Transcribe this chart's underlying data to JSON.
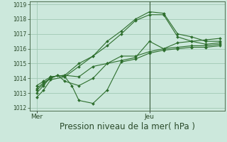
{
  "background_color": "#cce8dc",
  "grid_color": "#a0c8b4",
  "line_color": "#2d6e2d",
  "marker_color": "#2d6e2d",
  "xlabel": "Pression niveau de la mer( hPa )",
  "xlabel_fontsize": 8.5,
  "ylim": [
    1011.8,
    1019.2
  ],
  "yticks": [
    1012,
    1013,
    1014,
    1015,
    1016,
    1017,
    1018,
    1019
  ],
  "xtick_labels": [
    "Mer",
    "Jeu"
  ],
  "xtick_positions": [
    0,
    48
  ],
  "vline_x": 48,
  "xlim": [
    -3,
    80
  ],
  "series": [
    {
      "x": [
        0,
        3,
        6,
        12,
        18,
        24,
        30,
        36,
        42,
        48,
        54,
        60,
        66,
        72,
        78
      ],
      "y": [
        1012.7,
        1013.2,
        1013.9,
        1014.1,
        1014.8,
        1015.5,
        1016.5,
        1017.2,
        1018.0,
        1018.5,
        1018.4,
        1017.0,
        1016.8,
        1016.5,
        1016.5
      ]
    },
    {
      "x": [
        0,
        3,
        6,
        12,
        18,
        24,
        30,
        36,
        42,
        48,
        54,
        60,
        66,
        72,
        78
      ],
      "y": [
        1013.0,
        1013.5,
        1014.1,
        1014.2,
        1015.0,
        1015.5,
        1016.2,
        1017.0,
        1017.9,
        1018.3,
        1018.3,
        1016.8,
        1016.5,
        1016.3,
        1016.4
      ]
    },
    {
      "x": [
        0,
        3,
        6,
        9,
        12,
        18,
        24,
        30,
        36,
        42,
        48,
        54,
        60,
        66,
        72,
        78
      ],
      "y": [
        1013.2,
        1013.6,
        1014.0,
        1014.2,
        1013.8,
        1013.5,
        1014.0,
        1015.0,
        1015.5,
        1015.5,
        1015.8,
        1016.0,
        1016.1,
        1016.2,
        1016.2,
        1016.3
      ]
    },
    {
      "x": [
        0,
        3,
        6,
        9,
        12,
        15,
        18,
        24,
        30,
        36,
        42,
        48,
        54,
        60,
        66,
        72,
        78
      ],
      "y": [
        1013.3,
        1013.7,
        1014.0,
        1014.2,
        1014.1,
        1013.5,
        1012.5,
        1012.3,
        1013.2,
        1015.1,
        1015.3,
        1015.7,
        1015.9,
        1016.0,
        1016.1,
        1016.1,
        1016.2
      ]
    },
    {
      "x": [
        0,
        3,
        6,
        12,
        18,
        24,
        30,
        36,
        42,
        48,
        54,
        60,
        66,
        72,
        78
      ],
      "y": [
        1013.5,
        1013.8,
        1014.1,
        1014.2,
        1014.1,
        1014.8,
        1015.0,
        1015.2,
        1015.4,
        1016.5,
        1016.0,
        1016.4,
        1016.5,
        1016.6,
        1016.7
      ]
    }
  ]
}
